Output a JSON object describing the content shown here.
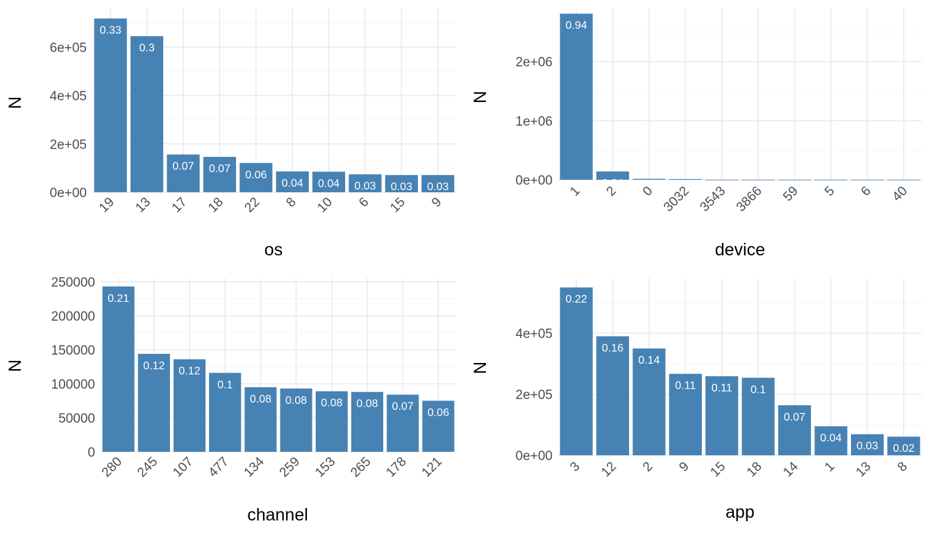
{
  "colors": {
    "bar": "#4682b4",
    "grid_major": "#ebebeb",
    "grid_minor": "#f5f5f5",
    "label": "#ffffff",
    "tick": "#4d4d4d"
  },
  "chart_data": [
    {
      "type": "bar",
      "xlabel": "os",
      "ylabel": "N",
      "categories": [
        "19",
        "13",
        "17",
        "18",
        "22",
        "8",
        "10",
        "6",
        "15",
        "9"
      ],
      "values": [
        718000,
        645000,
        156000,
        146000,
        121000,
        86000,
        85000,
        74000,
        71000,
        71000
      ],
      "labels": [
        "0.33",
        "0.3",
        "0.07",
        "0.07",
        "0.06",
        "0.04",
        "0.04",
        "0.03",
        "0.03",
        "0.03"
      ],
      "ylim": [
        0,
        760000
      ],
      "yticks": [
        0,
        200000,
        400000,
        600000
      ],
      "ytick_labels": [
        "0e+00",
        "2e+05",
        "4e+05",
        "6e+05"
      ],
      "grid": true
    },
    {
      "type": "bar",
      "xlabel": "device",
      "ylabel": "N",
      "categories": [
        "1",
        "2",
        "0",
        "3032",
        "3543",
        "3866",
        "59",
        "5",
        "6",
        "40"
      ],
      "values": [
        2810000,
        140000,
        16000,
        12000,
        1000,
        500,
        300,
        200,
        200,
        100
      ],
      "labels": [
        "0.94",
        "0.04",
        "",
        "",
        "",
        "",
        "",
        "",
        "",
        ""
      ],
      "ylim": [
        0,
        2900000
      ],
      "yticks": [
        0,
        1000000,
        2000000
      ],
      "ytick_labels": [
        "0e+00",
        "1e+06",
        "2e+06"
      ],
      "grid": true
    },
    {
      "type": "bar",
      "xlabel": "channel",
      "ylabel": "N",
      "categories": [
        "280",
        "245",
        "107",
        "477",
        "134",
        "259",
        "153",
        "265",
        "178",
        "121"
      ],
      "values": [
        243000,
        144000,
        136000,
        116000,
        95000,
        93000,
        89000,
        88000,
        84000,
        75000
      ],
      "labels": [
        "0.21",
        "0.12",
        "0.12",
        "0.1",
        "0.08",
        "0.08",
        "0.08",
        "0.08",
        "0.07",
        "0.06"
      ],
      "ylim": [
        0,
        255000
      ],
      "yticks": [
        0,
        50000,
        100000,
        150000,
        200000,
        250000
      ],
      "ytick_labels": [
        "0",
        "50000",
        "100000",
        "150000",
        "200000",
        "250000"
      ],
      "grid": true
    },
    {
      "type": "bar",
      "xlabel": "app",
      "ylabel": "N",
      "categories": [
        "3",
        "12",
        "2",
        "9",
        "15",
        "18",
        "14",
        "1",
        "13",
        "8"
      ],
      "values": [
        550000,
        390000,
        350000,
        267000,
        259000,
        254000,
        164000,
        95000,
        69000,
        61000
      ],
      "labels": [
        "0.22",
        "0.16",
        "0.14",
        "0.11",
        "0.11",
        "0.1",
        "0.07",
        "0.04",
        "0.03",
        "0.02"
      ],
      "ylim": [
        0,
        580000
      ],
      "yticks": [
        0,
        200000,
        400000
      ],
      "ytick_labels": [
        "0e+00",
        "2e+05",
        "4e+05"
      ],
      "grid": true
    }
  ]
}
